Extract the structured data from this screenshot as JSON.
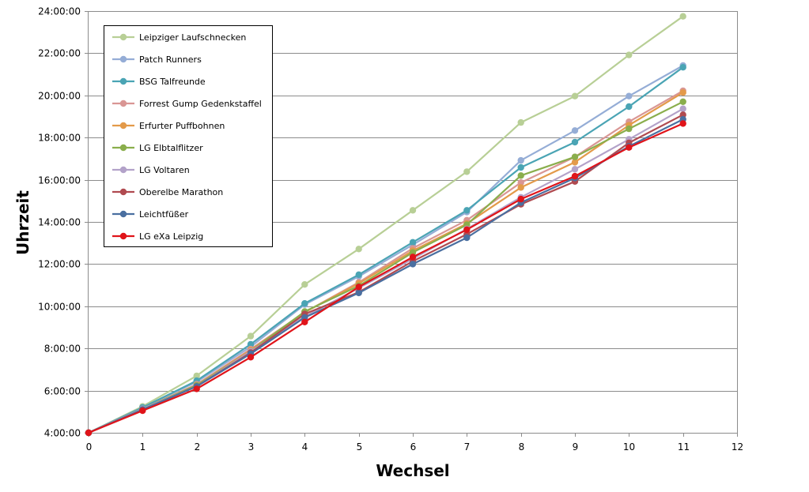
{
  "chart_data": {
    "type": "line",
    "title": "",
    "xlabel": "Wechsel",
    "ylabel": "Uhrzeit",
    "xlim": [
      0,
      12
    ],
    "xticks": [
      "0",
      "1",
      "2",
      "3",
      "4",
      "5",
      "6",
      "7",
      "8",
      "9",
      "10",
      "11",
      "12"
    ],
    "ylim": [
      "4:00:00",
      "24:00:00"
    ],
    "yticks": [
      "4:00:00",
      "6:00:00",
      "8:00:00",
      "10:00:00",
      "12:00:00",
      "14:00:00",
      "16:00:00",
      "18:00:00",
      "20:00:00",
      "22:00:00",
      "24:00:00"
    ],
    "grid": "horizontal",
    "legend_position": "top-left",
    "x": [
      0,
      1,
      2,
      3,
      4,
      5,
      6,
      7,
      8,
      9,
      10,
      11
    ],
    "series": [
      {
        "name": "Leipziger Laufschnecken",
        "color": "#b8cf96",
        "values": [
          "4:00",
          "5:15",
          "6:42",
          "8:35",
          "11:02",
          "12:43",
          "14:33",
          "16:23",
          "18:43",
          "19:58",
          "21:55",
          "23:45"
        ]
      },
      {
        "name": "Patch Runners",
        "color": "#95add6",
        "values": [
          "4:00",
          "5:12",
          "6:25",
          "8:05",
          "10:05",
          "11:25",
          "12:55",
          "14:28",
          "16:55",
          "18:20",
          "19:58",
          "21:25"
        ]
      },
      {
        "name": "BSG Talfreunde",
        "color": "#4aa4b4",
        "values": [
          "4:00",
          "5:12",
          "6:28",
          "8:12",
          "10:08",
          "11:30",
          "13:02",
          "14:33",
          "16:35",
          "17:47",
          "19:28",
          "21:20"
        ]
      },
      {
        "name": "Forrest Gump Gedenkstaffel",
        "color": "#d99694",
        "values": [
          "4:00",
          "5:08",
          "6:18",
          "7:58",
          "9:43",
          "11:08",
          "12:45",
          "14:05",
          "15:52",
          "17:05",
          "18:45",
          "20:13"
        ]
      },
      {
        "name": "Erfurter Puffbohnen",
        "color": "#e39a4a",
        "values": [
          "4:00",
          "5:08",
          "6:15",
          "7:55",
          "9:43",
          "11:05",
          "12:38",
          "13:55",
          "15:38",
          "16:50",
          "18:35",
          "20:08"
        ]
      },
      {
        "name": "LG Elbtalflitzer",
        "color": "#8aae4c",
        "values": [
          "4:00",
          "5:08",
          "6:15",
          "7:52",
          "9:45",
          "10:58",
          "12:33",
          "13:52",
          "16:12",
          "17:05",
          "18:25",
          "19:42"
        ]
      },
      {
        "name": "LG Voltaren",
        "color": "#b3a2c9",
        "values": [
          "4:00",
          "5:08",
          "6:12",
          "7:52",
          "9:30",
          "10:52",
          "12:15",
          "13:40",
          "15:10",
          "16:30",
          "17:55",
          "19:22"
        ]
      },
      {
        "name": "Oberelbe  Marathon",
        "color": "#b04a50",
        "values": [
          "4:00",
          "5:06",
          "6:12",
          "7:48",
          "9:38",
          "10:40",
          "12:08",
          "13:25",
          "14:50",
          "15:55",
          "17:45",
          "19:05"
        ]
      },
      {
        "name": "Leichtfüßer",
        "color": "#4a6fa0",
        "values": [
          "4:00",
          "5:06",
          "6:12",
          "7:45",
          "9:28",
          "10:38",
          "12:00",
          "13:15",
          "14:55",
          "16:05",
          "17:35",
          "18:52"
        ]
      },
      {
        "name": "LG eXa Leipzig",
        "color": "#e0141a",
        "values": [
          "4:00",
          "5:03",
          "6:05",
          "7:35",
          "9:15",
          "10:55",
          "12:20",
          "13:38",
          "15:05",
          "16:10",
          "17:32",
          "18:40"
        ]
      }
    ]
  }
}
